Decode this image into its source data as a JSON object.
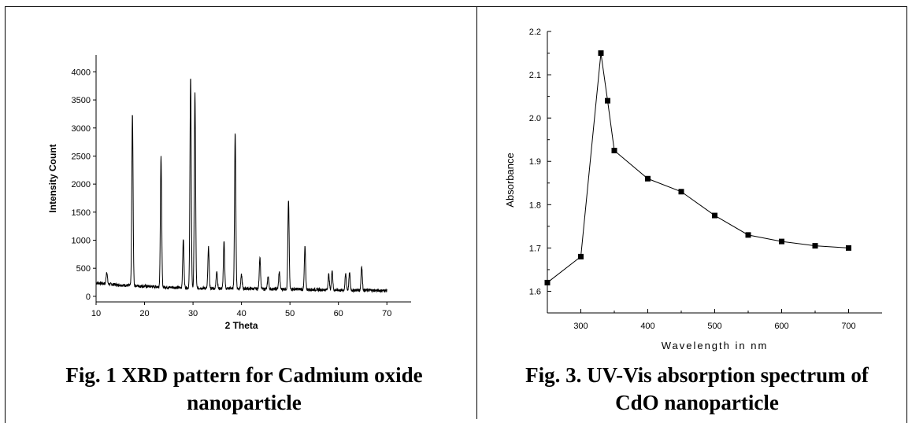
{
  "chart_data": [
    {
      "type": "line",
      "xlabel": "2 Theta",
      "ylabel": "Intensity Count",
      "xlim": [
        10,
        75
      ],
      "ylim": [
        -100,
        4300
      ],
      "xticks": [
        10,
        20,
        30,
        40,
        50,
        60,
        70
      ],
      "yticks": [
        0,
        500,
        1000,
        1500,
        2000,
        2500,
        3000,
        3500,
        4000
      ],
      "baseline": [
        [
          10,
          240
        ],
        [
          15,
          200
        ],
        [
          20,
          180
        ],
        [
          25,
          160
        ],
        [
          30,
          150
        ],
        [
          35,
          140
        ],
        [
          40,
          140
        ],
        [
          45,
          130
        ],
        [
          50,
          130
        ],
        [
          55,
          120
        ],
        [
          60,
          110
        ],
        [
          65,
          110
        ],
        [
          70,
          100
        ]
      ],
      "peaks": [
        {
          "x": 12.2,
          "y": 440
        },
        {
          "x": 17.5,
          "y": 3250
        },
        {
          "x": 23.4,
          "y": 2480
        },
        {
          "x": 28.0,
          "y": 1020
        },
        {
          "x": 29.5,
          "y": 3920
        },
        {
          "x": 30.4,
          "y": 3620
        },
        {
          "x": 33.2,
          "y": 870
        },
        {
          "x": 34.9,
          "y": 460
        },
        {
          "x": 36.4,
          "y": 970
        },
        {
          "x": 38.7,
          "y": 2920
        },
        {
          "x": 40.0,
          "y": 380
        },
        {
          "x": 43.8,
          "y": 700
        },
        {
          "x": 45.5,
          "y": 360
        },
        {
          "x": 47.8,
          "y": 440
        },
        {
          "x": 49.7,
          "y": 1700
        },
        {
          "x": 53.1,
          "y": 880
        },
        {
          "x": 58.0,
          "y": 390
        },
        {
          "x": 58.7,
          "y": 470
        },
        {
          "x": 61.5,
          "y": 400
        },
        {
          "x": 62.3,
          "y": 420
        },
        {
          "x": 64.8,
          "y": 540
        }
      ]
    },
    {
      "type": "line",
      "xlabel": "Wavelength in nm",
      "ylabel": "Absorbance",
      "xlim": [
        250,
        750
      ],
      "ylim": [
        1.55,
        2.2
      ],
      "xticks": [
        300,
        400,
        500,
        600,
        700
      ],
      "yticks": [
        1.6,
        1.7,
        1.8,
        1.9,
        2.0,
        2.1,
        2.2
      ],
      "ytick_labels": [
        "1.6",
        "1.7",
        "1.8",
        "1.9",
        "2.0",
        "2.1",
        "2.2"
      ],
      "x": [
        250,
        300,
        330,
        340,
        350,
        400,
        450,
        500,
        550,
        600,
        650,
        700
      ],
      "y": [
        1.62,
        1.68,
        2.15,
        2.04,
        1.925,
        1.86,
        1.83,
        1.775,
        1.73,
        1.715,
        1.705,
        1.7
      ],
      "marker": "square"
    }
  ],
  "captions": {
    "fig1": [
      "Fig. 1 XRD pattern for Cadmium oxide",
      "nanoparticle"
    ],
    "fig3": [
      "Fig. 3. UV-Vis absorption spectrum of",
      "CdO nanoparticle"
    ]
  }
}
